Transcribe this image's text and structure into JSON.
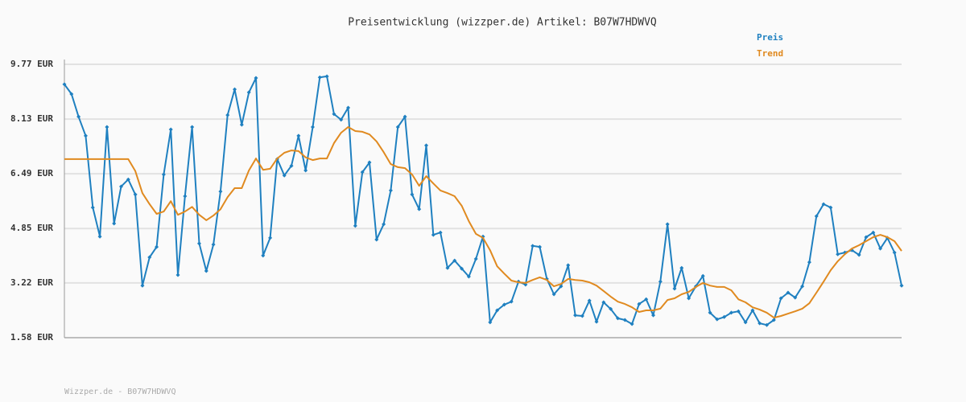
{
  "chart_data": {
    "type": "line",
    "title": "Preisentwicklung (wizzper.de) Artikel: B07W7HDWVQ",
    "footer": "Wizzper.de - B07W7HDWVQ",
    "ylim": [
      1.58,
      9.77
    ],
    "yticks": [
      {
        "value": 1.58,
        "label": "1.58 EUR"
      },
      {
        "value": 3.22,
        "label": "3.22 EUR"
      },
      {
        "value": 4.85,
        "label": "4.85 EUR"
      },
      {
        "value": 6.49,
        "label": "6.49 EUR"
      },
      {
        "value": 8.13,
        "label": "8.13 EUR"
      },
      {
        "value": 9.77,
        "label": "9.77 EUR"
      }
    ],
    "grid": true,
    "legend": "top-right",
    "series": [
      {
        "name": "Preis",
        "color": "#1f80c0",
        "markers": true,
        "values": [
          9.17,
          8.88,
          8.2,
          7.63,
          5.48,
          4.61,
          7.89,
          5.0,
          6.11,
          6.32,
          5.87,
          3.14,
          3.99,
          4.3,
          6.47,
          7.82,
          3.46,
          5.82,
          7.89,
          4.4,
          3.58,
          4.37,
          5.96,
          8.25,
          9.02,
          7.96,
          8.93,
          9.36,
          4.04,
          4.57,
          6.93,
          6.44,
          6.73,
          7.63,
          6.59,
          7.89,
          9.38,
          9.41,
          8.28,
          8.11,
          8.47,
          4.93,
          6.54,
          6.83,
          4.52,
          4.98,
          5.99,
          7.89,
          8.2,
          5.87,
          5.43,
          7.34,
          4.66,
          4.73,
          3.67,
          3.89,
          3.65,
          3.41,
          3.94,
          4.61,
          2.04,
          2.4,
          2.57,
          2.66,
          3.26,
          3.17,
          4.33,
          4.3,
          3.34,
          2.88,
          3.12,
          3.75,
          2.25,
          2.23,
          2.69,
          2.06,
          2.64,
          2.44,
          2.16,
          2.11,
          1.99,
          2.59,
          2.73,
          2.25,
          3.26,
          4.98,
          3.05,
          3.67,
          2.76,
          3.12,
          3.43,
          2.33,
          2.13,
          2.2,
          2.33,
          2.37,
          2.04,
          2.4,
          2.01,
          1.96,
          2.11,
          2.76,
          2.93,
          2.78,
          3.12,
          3.84,
          5.22,
          5.58,
          5.48,
          4.08,
          4.13,
          4.2,
          4.06,
          4.59,
          4.73,
          4.25,
          4.57,
          4.13,
          3.14
        ]
      },
      {
        "name": "Trend",
        "color": "#e08a20",
        "markers": false,
        "values": [
          6.93,
          6.93,
          6.93,
          6.93,
          6.93,
          6.93,
          6.93,
          6.93,
          6.93,
          6.93,
          6.57,
          5.91,
          5.58,
          5.29,
          5.36,
          5.67,
          5.26,
          5.36,
          5.5,
          5.26,
          5.1,
          5.24,
          5.43,
          5.79,
          6.06,
          6.06,
          6.59,
          6.95,
          6.61,
          6.64,
          6.95,
          7.12,
          7.19,
          7.17,
          6.98,
          6.9,
          6.95,
          6.95,
          7.41,
          7.72,
          7.89,
          7.77,
          7.75,
          7.67,
          7.46,
          7.14,
          6.78,
          6.69,
          6.66,
          6.47,
          6.13,
          6.42,
          6.2,
          5.99,
          5.91,
          5.82,
          5.53,
          5.07,
          4.69,
          4.57,
          4.2,
          3.72,
          3.5,
          3.29,
          3.24,
          3.22,
          3.31,
          3.39,
          3.31,
          3.12,
          3.19,
          3.34,
          3.31,
          3.29,
          3.24,
          3.14,
          2.98,
          2.81,
          2.66,
          2.59,
          2.49,
          2.35,
          2.4,
          2.4,
          2.45,
          2.71,
          2.76,
          2.88,
          2.95,
          3.1,
          3.22,
          3.14,
          3.1,
          3.1,
          3.0,
          2.73,
          2.64,
          2.49,
          2.42,
          2.33,
          2.18,
          2.23,
          2.3,
          2.37,
          2.45,
          2.61,
          2.93,
          3.26,
          3.6,
          3.87,
          4.08,
          4.25,
          4.35,
          4.47,
          4.59,
          4.66,
          4.59,
          4.47,
          4.18
        ]
      }
    ]
  }
}
